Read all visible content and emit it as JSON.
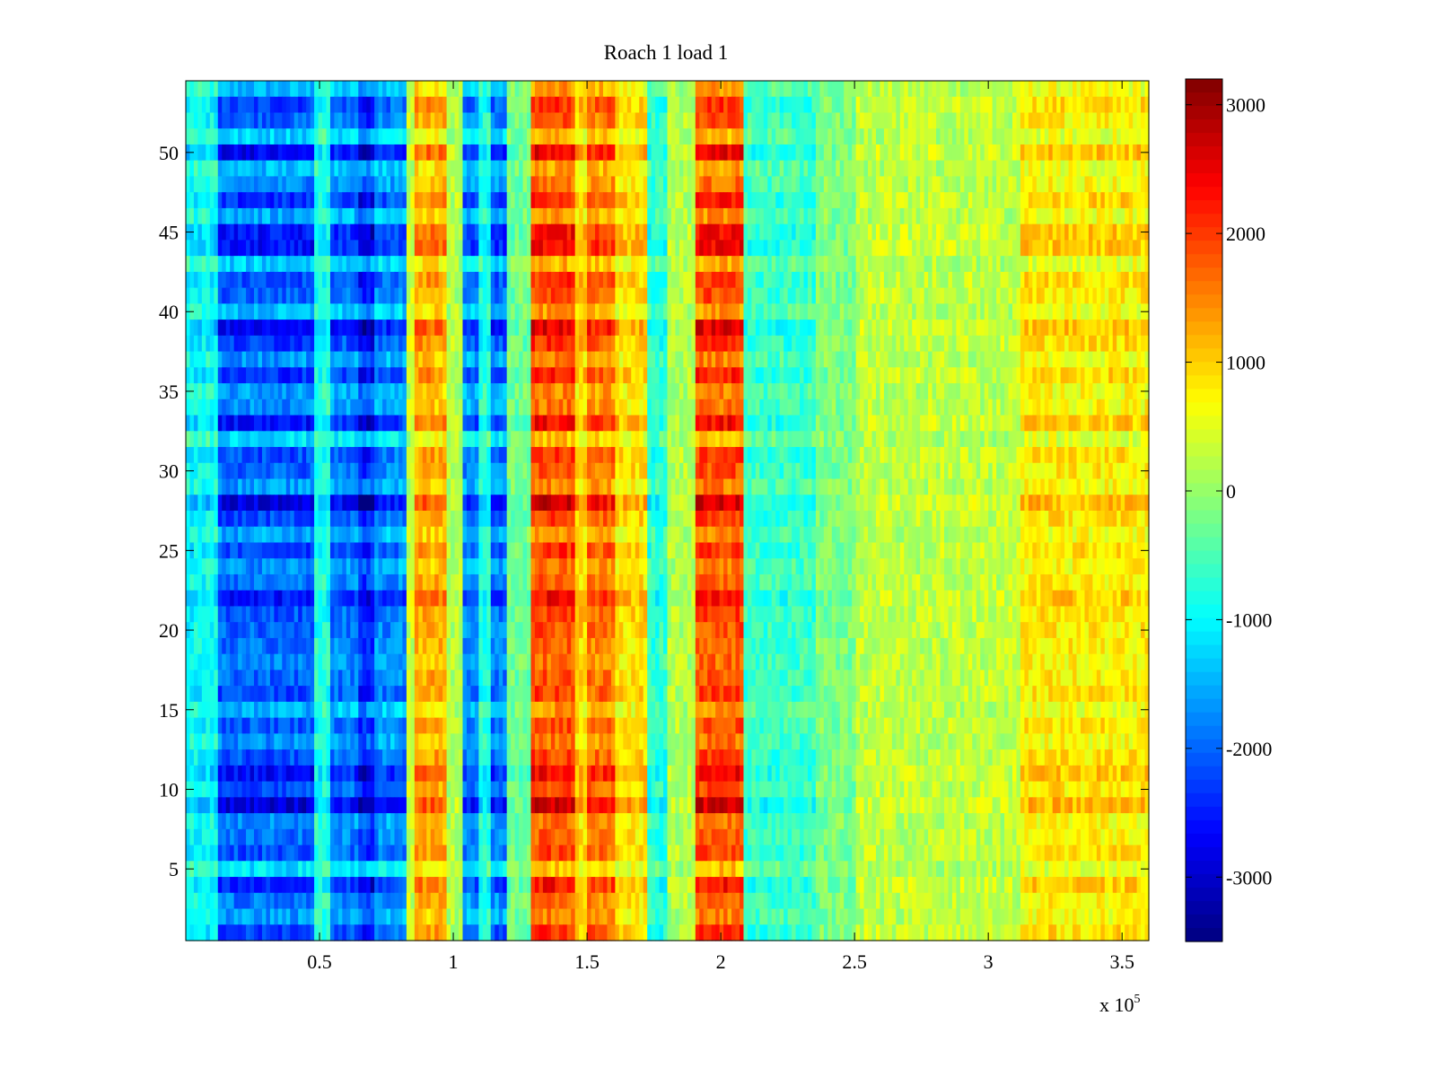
{
  "chart_data": {
    "type": "heatmap",
    "title": "Roach 1 load 1",
    "xlabel": "",
    "ylabel": "",
    "x_multiplier_label": "x 10",
    "x_multiplier_exponent": "5",
    "xlim": [
      0,
      3.6
    ],
    "ylim": [
      0.5,
      54.5
    ],
    "x_ticks": [
      0.5,
      1,
      1.5,
      2,
      2.5,
      3,
      3.5
    ],
    "x_tick_labels": [
      "0.5",
      "1",
      "1.5",
      "2",
      "2.5",
      "3",
      "3.5"
    ],
    "y_ticks": [
      5,
      10,
      15,
      20,
      25,
      30,
      35,
      40,
      45,
      50
    ],
    "y_tick_labels": [
      "5",
      "10",
      "15",
      "20",
      "25",
      "30",
      "35",
      "40",
      "45",
      "50"
    ],
    "rows": 54,
    "colormap": "jet",
    "colorbar": {
      "clim": [
        -3500,
        3200
      ],
      "ticks": [
        3000,
        2000,
        1000,
        0,
        -1000,
        -2000,
        -3000
      ],
      "tick_labels": [
        "3000",
        "2000",
        "1000",
        "0",
        "-1000",
        "-2000",
        "-3000"
      ]
    },
    "column_profile": {
      "description": "approximate mean value per x-band (x in units of 10^5)",
      "bands": [
        {
          "x0": 0.0,
          "x1": 0.12,
          "value": -1100
        },
        {
          "x0": 0.12,
          "x1": 0.48,
          "value": -2300
        },
        {
          "x0": 0.48,
          "x1": 0.54,
          "value": -900
        },
        {
          "x0": 0.54,
          "x1": 0.65,
          "value": -2100
        },
        {
          "x0": 0.65,
          "x1": 0.7,
          "value": -2700
        },
        {
          "x0": 0.7,
          "x1": 0.82,
          "value": -2000
        },
        {
          "x0": 0.82,
          "x1": 0.86,
          "value": 400
        },
        {
          "x0": 0.86,
          "x1": 0.97,
          "value": 1400
        },
        {
          "x0": 0.97,
          "x1": 1.03,
          "value": 200
        },
        {
          "x0": 1.03,
          "x1": 1.1,
          "value": -2000
        },
        {
          "x0": 1.1,
          "x1": 1.14,
          "value": -900
        },
        {
          "x0": 1.14,
          "x1": 1.2,
          "value": -2100
        },
        {
          "x0": 1.2,
          "x1": 1.29,
          "value": -300
        },
        {
          "x0": 1.29,
          "x1": 1.46,
          "value": 2100
        },
        {
          "x0": 1.46,
          "x1": 1.5,
          "value": 1100
        },
        {
          "x0": 1.5,
          "x1": 1.6,
          "value": 1800
        },
        {
          "x0": 1.6,
          "x1": 1.73,
          "value": 1000
        },
        {
          "x0": 1.73,
          "x1": 1.8,
          "value": -800
        },
        {
          "x0": 1.8,
          "x1": 1.9,
          "value": 200
        },
        {
          "x0": 1.9,
          "x1": 2.08,
          "value": 2100
        },
        {
          "x0": 2.08,
          "x1": 2.35,
          "value": -700
        },
        {
          "x0": 2.35,
          "x1": 2.5,
          "value": -200
        },
        {
          "x0": 2.5,
          "x1": 3.12,
          "value": 300
        },
        {
          "x0": 3.12,
          "x1": 3.6,
          "value": 900
        }
      ]
    }
  }
}
